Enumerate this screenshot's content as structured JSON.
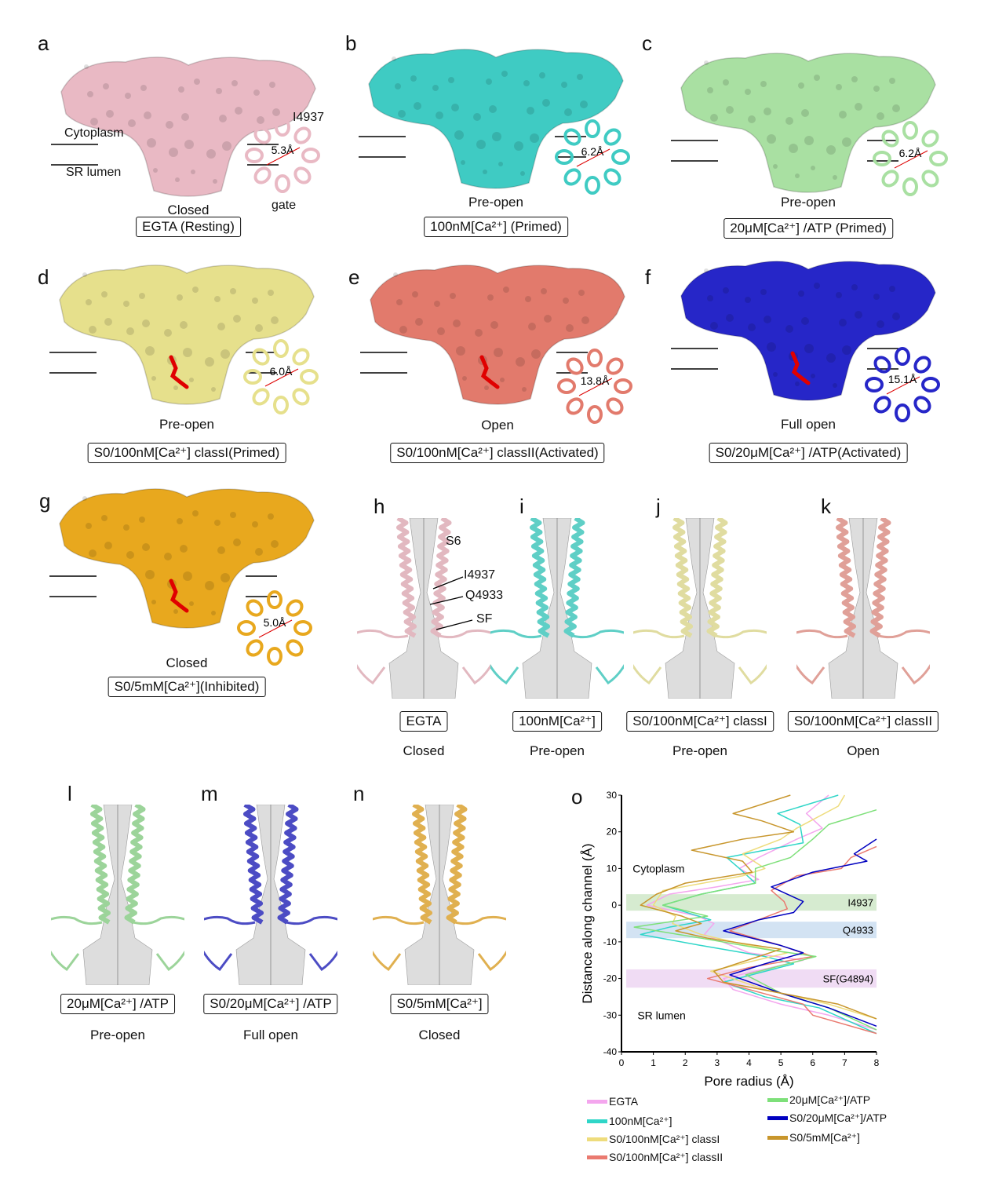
{
  "maps": [
    {
      "letter": "a",
      "state": "Closed",
      "condition": "EGTA (Resting)",
      "distance": "5.3Å",
      "color": "#e9b9c4",
      "ligand": false
    },
    {
      "letter": "b",
      "state": "Pre-open",
      "condition": "100nM[Ca²⁺] (Primed)",
      "distance": "6.2Å",
      "color": "#3fcbc3",
      "ligand": false
    },
    {
      "letter": "c",
      "state": "Pre-open",
      "condition": "20μM[Ca²⁺] /ATP (Primed)",
      "distance": "6.2Å",
      "color": "#a9e0a2",
      "ligand": false
    },
    {
      "letter": "d",
      "state": "Pre-open",
      "condition": "S0/100nM[Ca²⁺] classI(Primed)",
      "distance": "6.0Å",
      "color": "#e6e08c",
      "ligand": true
    },
    {
      "letter": "e",
      "state": "Open",
      "condition": "S0/100nM[Ca²⁺] classII(Activated)",
      "distance": "13.8Å",
      "color": "#e27a6c",
      "ligand": true
    },
    {
      "letter": "f",
      "state": "Full open",
      "condition": "S0/20μM[Ca²⁺] /ATP(Activated)",
      "distance": "15.1Å",
      "color": "#2626c8",
      "ligand": true
    },
    {
      "letter": "g",
      "state": "Closed",
      "condition": "S0/5mM[Ca²⁺](Inhibited)",
      "distance": "5.0Å",
      "color": "#e8a81e",
      "ligand": true
    }
  ],
  "panel_a_labels": {
    "cytoplasm": "Cytoplasm",
    "sr_lumen": "SR lumen",
    "residue": "I4937",
    "gate": "gate"
  },
  "pores": [
    {
      "letter": "h",
      "condition": "EGTA",
      "state": "Closed",
      "color": "#e2b8c0"
    },
    {
      "letter": "i",
      "condition": "100nM[Ca²⁺]",
      "state": "Pre-open",
      "color": "#5fcfc6"
    },
    {
      "letter": "j",
      "condition": "S0/100nM[Ca²⁺] classI",
      "state": "Pre-open",
      "color": "#e0dca0"
    },
    {
      "letter": "k",
      "condition": "S0/100nM[Ca²⁺] classII",
      "state": "Open",
      "color": "#e0a098"
    },
    {
      "letter": "l",
      "condition": "20μM[Ca²⁺] /ATP",
      "state": "Pre-open",
      "color": "#9cd49a"
    },
    {
      "letter": "m",
      "condition": "S0/20μM[Ca²⁺] /ATP",
      "state": "Full open",
      "color": "#4c4cc4"
    },
    {
      "letter": "n",
      "condition": "S0/5mM[Ca²⁺]",
      "state": "Closed",
      "color": "#e0b050"
    }
  ],
  "panel_h_labels": {
    "s6": "S6",
    "i4937": "I4937",
    "q4933": "Q4933",
    "sf": "SF"
  },
  "chart_data": {
    "letter": "o",
    "type": "line",
    "xlabel": "Pore radius (Å)",
    "ylabel": "Distance along channel (Å)",
    "xlim": [
      0,
      8
    ],
    "ylim": [
      -40,
      30
    ],
    "xticks": [
      "0",
      "1",
      "2",
      "3",
      "4",
      "5",
      "6",
      "7",
      "8"
    ],
    "yticks": [
      "30",
      "20",
      "10",
      "0",
      "-10",
      "-20",
      "-30",
      "-40"
    ],
    "annotations": {
      "cytoplasm": "Cytoplasm",
      "sr_lumen": "SR lumen"
    },
    "bands": [
      {
        "label": "I4937",
        "range": [
          -1.5,
          3
        ],
        "color": "#d6ebd0"
      },
      {
        "label": "Q4933",
        "range": [
          -9,
          -4.5
        ],
        "color": "#d3e3f3"
      },
      {
        "label": "SF(G4894)",
        "range": [
          -22.5,
          -17.5
        ],
        "color": "#f0dcf4"
      }
    ],
    "series": [
      {
        "name": "EGTA",
        "color": "#f4a6ee",
        "points": [
          [
            6.5,
            30
          ],
          [
            5.8,
            25
          ],
          [
            6.3,
            21
          ],
          [
            5.5,
            18
          ],
          [
            4.3,
            13
          ],
          [
            3.7,
            10
          ],
          [
            4.3,
            7
          ],
          [
            3,
            5
          ],
          [
            1.5,
            3
          ],
          [
            0.8,
            0
          ],
          [
            2.4,
            -3
          ],
          [
            2.9,
            -5
          ],
          [
            2.6,
            -8
          ],
          [
            4,
            -13
          ],
          [
            5.7,
            -15
          ],
          [
            3.2,
            -20
          ],
          [
            3.5,
            -23
          ],
          [
            5,
            -27
          ],
          [
            6.5,
            -30
          ],
          [
            8,
            -34
          ]
        ]
      },
      {
        "name": "100nM[Ca²⁺]",
        "color": "#2fd6c8",
        "points": [
          [
            6.8,
            30
          ],
          [
            4.9,
            25
          ],
          [
            5.6,
            22
          ],
          [
            5.7,
            17
          ],
          [
            3.3,
            13
          ],
          [
            3.7,
            10
          ],
          [
            4.2,
            6
          ],
          [
            2.5,
            3
          ],
          [
            1.3,
            0
          ],
          [
            2.8,
            -4
          ],
          [
            1.5,
            -6
          ],
          [
            0.6,
            -8
          ],
          [
            2.5,
            -11
          ],
          [
            4.5,
            -14
          ],
          [
            5.4,
            -16
          ],
          [
            3.2,
            -21
          ],
          [
            4.5,
            -25
          ],
          [
            6.2,
            -28
          ],
          [
            8,
            -35
          ]
        ]
      },
      {
        "name": "S0/100nM[Ca²⁺] classI",
        "color": "#eedc7c",
        "points": [
          [
            7,
            30
          ],
          [
            6.8,
            27
          ],
          [
            5.5,
            21
          ],
          [
            5,
            18
          ],
          [
            3.8,
            14
          ],
          [
            4.5,
            10
          ],
          [
            3.8,
            8
          ],
          [
            1.3,
            4
          ],
          [
            1,
            0
          ],
          [
            1.7,
            -3
          ],
          [
            1.6,
            -5
          ],
          [
            2.5,
            -8
          ],
          [
            4,
            -11
          ],
          [
            5.2,
            -13
          ],
          [
            2.8,
            -18
          ],
          [
            4.5,
            -23
          ],
          [
            6.5,
            -27
          ],
          [
            8,
            -31
          ]
        ]
      },
      {
        "name": "S0/100nM[Ca²⁺] classII",
        "color": "#ea7a70",
        "points": [
          [
            8,
            16
          ],
          [
            7.2,
            13
          ],
          [
            6.9,
            10
          ],
          [
            5.5,
            8
          ],
          [
            4.7,
            4
          ],
          [
            5.1,
            1
          ],
          [
            5.2,
            -1
          ],
          [
            4.3,
            -4
          ],
          [
            3.4,
            -7
          ],
          [
            5,
            -11
          ],
          [
            6,
            -14
          ],
          [
            4,
            -17
          ],
          [
            2.7,
            -20
          ],
          [
            4,
            -23
          ],
          [
            5.7,
            -27
          ],
          [
            6,
            -30
          ],
          [
            8,
            -35
          ]
        ]
      },
      {
        "name": "20μM[Ca²⁺]/ATP",
        "color": "#7ee07a",
        "points": [
          [
            8,
            26
          ],
          [
            6.5,
            22
          ],
          [
            6,
            18
          ],
          [
            5.3,
            13
          ],
          [
            4.2,
            10
          ],
          [
            4.2,
            6
          ],
          [
            2.5,
            3
          ],
          [
            1.3,
            0
          ],
          [
            2.7,
            -3
          ],
          [
            0.4,
            -6
          ],
          [
            2.5,
            -9
          ],
          [
            4.5,
            -12
          ],
          [
            6.1,
            -14
          ],
          [
            3.9,
            -19
          ],
          [
            5,
            -24
          ],
          [
            6.5,
            -28
          ],
          [
            8,
            -34
          ]
        ]
      },
      {
        "name": "S0/20μM[Ca²⁺]/ATP",
        "color": "#0000c0",
        "points": [
          [
            8,
            18
          ],
          [
            7.3,
            14
          ],
          [
            7.7,
            12
          ],
          [
            6,
            9
          ],
          [
            4.7,
            5
          ],
          [
            5.7,
            1
          ],
          [
            5.4,
            -2
          ],
          [
            4.3,
            -4
          ],
          [
            3.2,
            -7
          ],
          [
            5,
            -11
          ],
          [
            5.7,
            -13
          ],
          [
            4.5,
            -16
          ],
          [
            3.4,
            -19
          ],
          [
            5,
            -24
          ],
          [
            6.5,
            -28
          ],
          [
            8,
            -33
          ]
        ]
      },
      {
        "name": "S0/5mM[Ca²⁺]",
        "color": "#c8962c",
        "points": [
          [
            5.3,
            30
          ],
          [
            3.5,
            25
          ],
          [
            4.4,
            23
          ],
          [
            5.4,
            20
          ],
          [
            3.8,
            18
          ],
          [
            2.2,
            15
          ],
          [
            3.8,
            12
          ],
          [
            4.1,
            9
          ],
          [
            2,
            6
          ],
          [
            1.1,
            3
          ],
          [
            0.6,
            0
          ],
          [
            1.9,
            -3
          ],
          [
            2.5,
            -5
          ],
          [
            1.7,
            -7
          ],
          [
            2.7,
            -9
          ],
          [
            5,
            -12
          ],
          [
            2.9,
            -18
          ],
          [
            3.2,
            -21
          ],
          [
            6.8,
            -27
          ],
          [
            8,
            -31
          ]
        ]
      }
    ],
    "legend_placement": "bottom"
  }
}
